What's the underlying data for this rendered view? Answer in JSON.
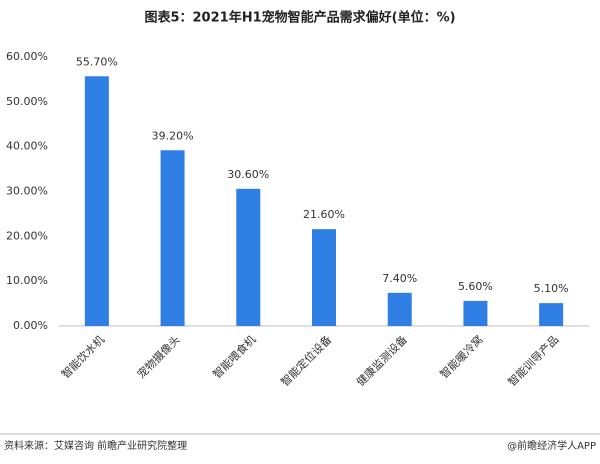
{
  "chart_data": {
    "type": "bar",
    "title": "图表5：2021年H1宠物智能产品需求偏好(单位：%)",
    "categories": [
      "智能饮水机",
      "宠物摄像头",
      "智能喂食机",
      "智能定位设备",
      "健康监测设备",
      "智能暖冷窝",
      "智能训导产品"
    ],
    "values": [
      55.7,
      39.2,
      30.6,
      21.6,
      7.4,
      5.6,
      5.1
    ],
    "value_labels": [
      "55.70%",
      "39.20%",
      "30.60%",
      "21.60%",
      "7.40%",
      "5.60%",
      "5.10%"
    ],
    "color": "#2f7ee3",
    "ylim": [
      0,
      60
    ],
    "yticks": [
      {
        "value": 0,
        "label": "0.00%"
      },
      {
        "value": 10,
        "label": "10.00%"
      },
      {
        "value": 20,
        "label": "20.00%"
      },
      {
        "value": 30,
        "label": "30.00%"
      },
      {
        "value": 40,
        "label": "40.00%"
      },
      {
        "value": 50,
        "label": "50.00%"
      },
      {
        "value": 60,
        "label": "60.00%"
      }
    ],
    "grid": false,
    "source": "资料来源：艾媒咨询 前瞻产业研究院整理",
    "credit": "@前瞻经济学人APP"
  }
}
